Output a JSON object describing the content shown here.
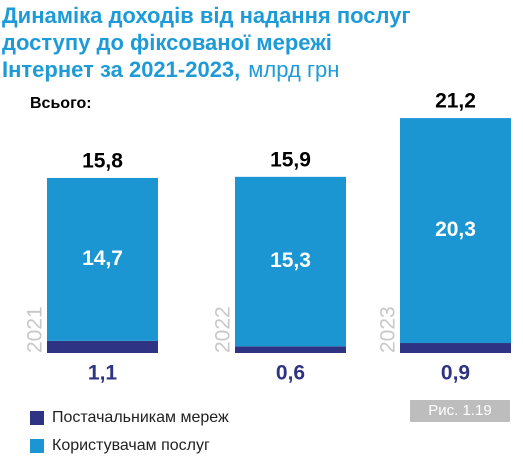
{
  "chart_data": {
    "type": "stacked_bar",
    "title": [
      "Динаміка доходів від надання послуг",
      "доступу до фіксованої мережі",
      "Інтернет за 2021-2023,"
    ],
    "unit": "млрд грн",
    "total_caption": "Всього:",
    "figure_label": "Рис. 1.19",
    "categories": [
      "2021",
      "2022",
      "2023"
    ],
    "totals": [
      15.8,
      15.9,
      21.2
    ],
    "total_labels": [
      "15,8",
      "15,9",
      "21,2"
    ],
    "series": [
      {
        "name": "Постачальникам мереж",
        "color": "#2e3383",
        "values": [
          1.1,
          0.6,
          0.9
        ],
        "value_labels": [
          "1,1",
          "0,6",
          "0,9"
        ]
      },
      {
        "name": "Користувачам послуг",
        "color": "#1b96d3",
        "values": [
          14.7,
          15.3,
          20.3
        ],
        "value_labels": [
          "14,7",
          "15,3",
          "20,3"
        ]
      }
    ]
  }
}
